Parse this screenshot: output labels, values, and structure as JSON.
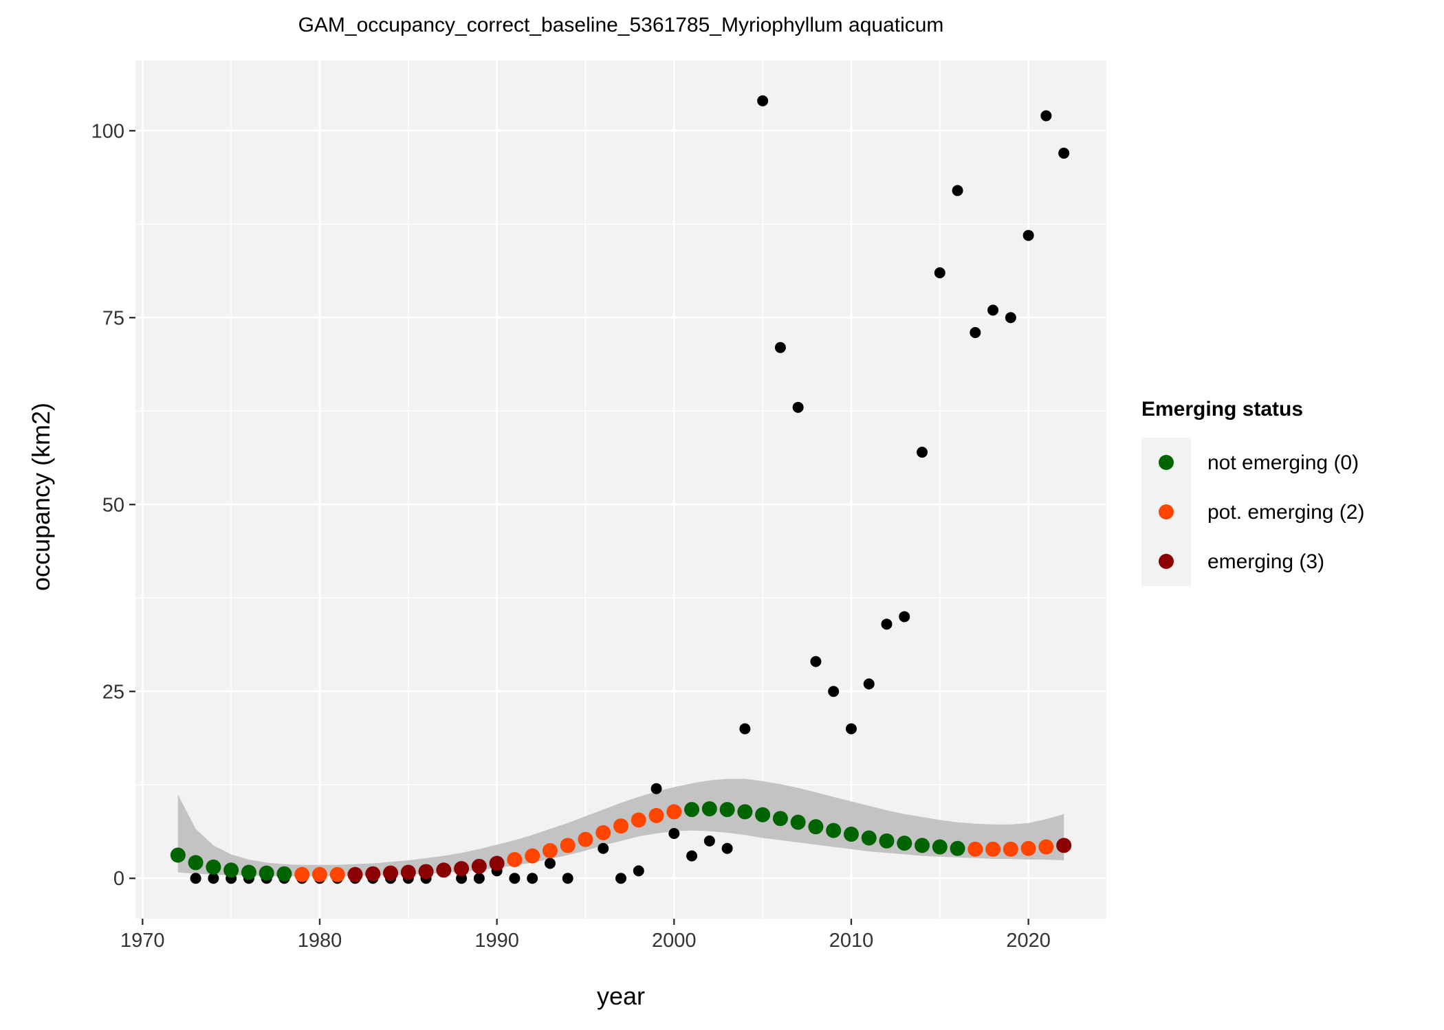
{
  "chart_data": {
    "type": "scatter",
    "title": "GAM_occupancy_correct_baseline_5361785_Myriophyllum aquaticum",
    "xlabel": "year",
    "ylabel": "occupancy (km2)",
    "xlim": [
      1969.6,
      2024.4
    ],
    "ylim": [
      -5.4,
      109.4
    ],
    "x_ticks": [
      1970,
      1980,
      1990,
      2000,
      2010,
      2020
    ],
    "y_ticks": [
      0,
      25,
      50,
      75,
      100
    ],
    "grid": true,
    "legend": {
      "title": "Emerging status",
      "placement": "right",
      "entries": [
        {
          "label": "not emerging (0)",
          "status": 0,
          "color": "#006400"
        },
        {
          "label": "pot. emerging (2)",
          "status": 2,
          "color": "#FF4500"
        },
        {
          "label": "emerging (3)",
          "status": 3,
          "color": "#8B0000"
        }
      ]
    },
    "colors": {
      "panel": "#F2F2F2",
      "grid": "#FFFFFF",
      "ribbon": "#BEBEBE",
      "observed": "#000000"
    },
    "observed": {
      "x": [
        1973,
        1974,
        1975,
        1976,
        1977,
        1978,
        1979,
        1980,
        1981,
        1982,
        1983,
        1984,
        1985,
        1986,
        1988,
        1989,
        1990,
        1991,
        1992,
        1993,
        1994,
        1995,
        1996,
        1997,
        1998,
        1999,
        2000,
        2001,
        2002,
        2003,
        2004,
        2005,
        2006,
        2007,
        2008,
        2009,
        2010,
        2011,
        2012,
        2013,
        2014,
        2015,
        2016,
        2017,
        2018,
        2019,
        2020,
        2021,
        2022
      ],
      "y": [
        0,
        0,
        0,
        0,
        0,
        0,
        0,
        0,
        0,
        0,
        0,
        0,
        0,
        0,
        0,
        0,
        1,
        0,
        0,
        2,
        0,
        5,
        4,
        0,
        1,
        12,
        6,
        3,
        5,
        4,
        20,
        104,
        71,
        63,
        29,
        25,
        20,
        26,
        34,
        35,
        57,
        81,
        92,
        73,
        76,
        75,
        86,
        102,
        97
      ]
    },
    "fitted": {
      "x": [
        1972,
        1973,
        1974,
        1975,
        1976,
        1977,
        1978,
        1979,
        1980,
        1981,
        1982,
        1983,
        1984,
        1985,
        1986,
        1987,
        1988,
        1989,
        1990,
        1991,
        1992,
        1993,
        1994,
        1995,
        1996,
        1997,
        1998,
        1999,
        2000,
        2001,
        2002,
        2003,
        2004,
        2005,
        2006,
        2007,
        2008,
        2009,
        2010,
        2011,
        2012,
        2013,
        2014,
        2015,
        2016,
        2017,
        2018,
        2019,
        2020,
        2021,
        2022
      ],
      "y": [
        3.1,
        2.1,
        1.5,
        1.1,
        0.8,
        0.7,
        0.6,
        0.5,
        0.5,
        0.5,
        0.5,
        0.6,
        0.7,
        0.8,
        0.9,
        1.1,
        1.3,
        1.6,
        2.0,
        2.5,
        3.0,
        3.7,
        4.4,
        5.2,
        6.1,
        7.0,
        7.8,
        8.4,
        8.9,
        9.2,
        9.3,
        9.2,
        8.9,
        8.5,
        8.0,
        7.5,
        6.9,
        6.4,
        5.9,
        5.4,
        5.0,
        4.7,
        4.4,
        4.2,
        4.0,
        3.9,
        3.9,
        3.9,
        4.0,
        4.2,
        4.4
      ],
      "status": [
        0,
        0,
        0,
        0,
        0,
        0,
        0,
        2,
        2,
        2,
        3,
        3,
        3,
        3,
        3,
        3,
        3,
        3,
        3,
        2,
        2,
        2,
        2,
        2,
        2,
        2,
        2,
        2,
        2,
        0,
        0,
        0,
        0,
        0,
        0,
        0,
        0,
        0,
        0,
        0,
        0,
        0,
        0,
        0,
        0,
        2,
        2,
        2,
        2,
        2,
        3
      ],
      "lower": [
        0.8,
        0.6,
        0.5,
        0.4,
        0.4,
        0.3,
        0.3,
        0.3,
        0.3,
        0.3,
        0.3,
        0.4,
        0.4,
        0.5,
        0.6,
        0.7,
        0.9,
        1.1,
        1.4,
        1.7,
        2.1,
        2.6,
        3.1,
        3.7,
        4.4,
        5.0,
        5.6,
        6.0,
        6.3,
        6.4,
        6.3,
        6.1,
        5.8,
        5.4,
        5.1,
        4.8,
        4.5,
        4.2,
        3.9,
        3.6,
        3.4,
        3.2,
        3.0,
        2.9,
        2.8,
        2.7,
        2.6,
        2.6,
        2.5,
        2.5,
        2.4
      ],
      "upper": [
        11.2,
        6.6,
        4.4,
        3.2,
        2.5,
        2.1,
        1.9,
        1.8,
        1.8,
        1.8,
        1.9,
        2.0,
        2.2,
        2.4,
        2.7,
        3.0,
        3.4,
        3.9,
        4.5,
        5.1,
        5.8,
        6.6,
        7.4,
        8.3,
        9.2,
        10.1,
        10.9,
        11.6,
        12.2,
        12.7,
        13.1,
        13.3,
        13.3,
        13.0,
        12.6,
        12.1,
        11.5,
        10.9,
        10.3,
        9.7,
        9.1,
        8.6,
        8.2,
        7.8,
        7.5,
        7.3,
        7.2,
        7.2,
        7.4,
        7.9,
        8.6
      ]
    }
  }
}
